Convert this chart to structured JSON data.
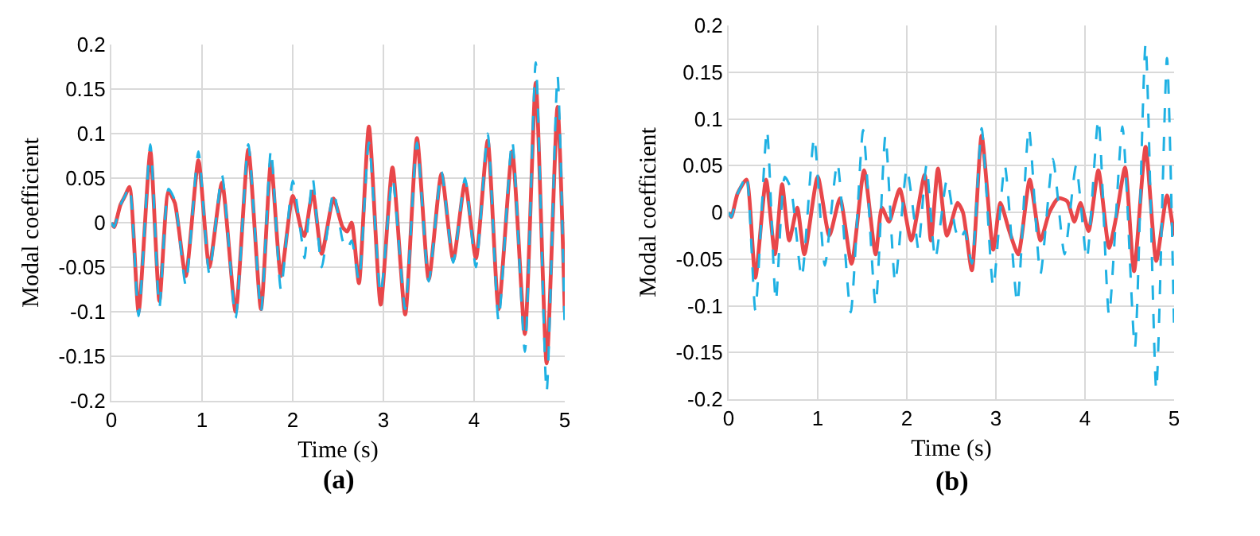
{
  "chart_data": [
    {
      "type": "line",
      "xlabel": "Time (s)",
      "ylabel": "Modal coefficient",
      "annotations": [
        "(a)"
      ],
      "xlim": [
        0,
        5
      ],
      "ylim": [
        -0.2,
        0.2
      ],
      "xticks": [
        0,
        1,
        2,
        3,
        4,
        5
      ],
      "yticks": [
        -0.2,
        -0.15,
        -0.1,
        -0.05,
        0,
        0.05,
        0.1,
        0.15,
        0.2
      ],
      "grid": true,
      "marker": "none",
      "series": [
        {
          "color": "#1fb1e3",
          "line_style": "dashed",
          "x": [
            0,
            0.03,
            0.1,
            0.15,
            0.2,
            0.3,
            0.43,
            0.53,
            0.63,
            0.7,
            0.82,
            0.96,
            1.08,
            1.22,
            1.37,
            1.51,
            1.65,
            1.76,
            1.87,
            2.0,
            2.1,
            2.13,
            2.22,
            2.32,
            2.45,
            2.55,
            2.6,
            2.65,
            2.73,
            2.84,
            2.97,
            3.1,
            3.24,
            3.37,
            3.5,
            3.64,
            3.77,
            3.9,
            4.02,
            4.15,
            4.27,
            4.42,
            4.56,
            4.68,
            4.8,
            4.92,
            5.0
          ],
          "values": [
            0,
            -0.005,
            0.02,
            0.03,
            0.04,
            -0.105,
            0.088,
            -0.095,
            0.038,
            0.025,
            -0.07,
            0.08,
            -0.057,
            0.053,
            -0.107,
            0.088,
            -0.1,
            0.082,
            -0.075,
            0.047,
            -0.02,
            -0.04,
            0.05,
            -0.05,
            0.035,
            -0.02,
            -0.03,
            -0.02,
            -0.065,
            0.09,
            -0.08,
            0.05,
            -0.097,
            0.09,
            -0.066,
            0.057,
            -0.045,
            0.05,
            -0.05,
            0.1,
            -0.11,
            0.092,
            -0.145,
            0.18,
            -0.19,
            0.165,
            -0.125
          ]
        },
        {
          "color": "#e8474a",
          "line_style": "solid",
          "x": [
            0,
            0.03,
            0.1,
            0.15,
            0.2,
            0.3,
            0.43,
            0.53,
            0.63,
            0.7,
            0.82,
            0.96,
            1.08,
            1.22,
            1.37,
            1.51,
            1.65,
            1.76,
            1.87,
            2.0,
            2.1,
            2.13,
            2.22,
            2.32,
            2.45,
            2.55,
            2.6,
            2.65,
            2.73,
            2.84,
            2.97,
            3.1,
            3.24,
            3.37,
            3.5,
            3.64,
            3.77,
            3.9,
            4.02,
            4.15,
            4.27,
            4.42,
            4.56,
            4.68,
            4.8,
            4.92,
            5.0
          ],
          "values": [
            0,
            -0.005,
            0.02,
            0.03,
            0.04,
            -0.1,
            0.08,
            -0.088,
            0.035,
            0.022,
            -0.06,
            0.07,
            -0.05,
            0.045,
            -0.1,
            0.082,
            -0.097,
            0.068,
            -0.06,
            0.03,
            -0.01,
            -0.015,
            0.035,
            -0.035,
            0.027,
            -0.005,
            -0.01,
            0,
            -0.068,
            0.108,
            -0.092,
            0.062,
            -0.103,
            0.095,
            -0.064,
            0.055,
            -0.042,
            0.045,
            -0.04,
            0.092,
            -0.097,
            0.08,
            -0.125,
            0.157,
            -0.158,
            0.13,
            -0.1
          ]
        }
      ]
    },
    {
      "type": "line",
      "xlabel": "Time (s)",
      "ylabel": "Modal coefficient",
      "annotations": [
        "(b)"
      ],
      "xlim": [
        0,
        5
      ],
      "ylim": [
        -0.2,
        0.2
      ],
      "xticks": [
        0,
        1,
        2,
        3,
        4,
        5
      ],
      "yticks": [
        -0.2,
        -0.15,
        -0.1,
        -0.05,
        0,
        0.05,
        0.1,
        0.15,
        0.2
      ],
      "grid": true,
      "marker": "none",
      "series": [
        {
          "color": "#1fb1e3",
          "line_style": "dashed",
          "x": [
            0,
            0.03,
            0.1,
            0.15,
            0.2,
            0.3,
            0.43,
            0.53,
            0.63,
            0.7,
            0.82,
            0.96,
            1.08,
            1.22,
            1.37,
            1.51,
            1.65,
            1.76,
            1.87,
            2.0,
            2.1,
            2.13,
            2.22,
            2.32,
            2.45,
            2.55,
            2.6,
            2.65,
            2.73,
            2.84,
            2.97,
            3.1,
            3.24,
            3.37,
            3.5,
            3.64,
            3.77,
            3.9,
            4.02,
            4.15,
            4.27,
            4.42,
            4.56,
            4.68,
            4.8,
            4.92,
            5.0
          ],
          "values": [
            0,
            -0.005,
            0.02,
            0.03,
            0.04,
            -0.105,
            0.088,
            -0.095,
            0.038,
            0.025,
            -0.07,
            0.08,
            -0.057,
            0.053,
            -0.107,
            0.088,
            -0.1,
            0.082,
            -0.075,
            0.047,
            -0.02,
            -0.04,
            0.05,
            -0.05,
            0.035,
            -0.02,
            -0.03,
            -0.02,
            -0.055,
            0.09,
            -0.08,
            0.05,
            -0.097,
            0.09,
            -0.066,
            0.057,
            -0.045,
            0.05,
            -0.05,
            0.1,
            -0.11,
            0.092,
            -0.145,
            0.18,
            -0.19,
            0.165,
            -0.125
          ]
        },
        {
          "color": "#e8474a",
          "line_style": "solid",
          "x": [
            0,
            0.03,
            0.1,
            0.2,
            0.3,
            0.42,
            0.52,
            0.6,
            0.68,
            0.77,
            0.85,
            1.0,
            1.13,
            1.25,
            1.38,
            1.52,
            1.65,
            1.72,
            1.8,
            1.92,
            2.05,
            2.2,
            2.27,
            2.35,
            2.45,
            2.57,
            2.63,
            2.73,
            2.84,
            2.97,
            3.05,
            3.15,
            3.25,
            3.38,
            3.5,
            3.6,
            3.7,
            3.8,
            3.88,
            3.95,
            4.04,
            4.15,
            4.27,
            4.35,
            4.45,
            4.55,
            4.68,
            4.8,
            4.92,
            5.0
          ],
          "values": [
            0,
            -0.005,
            0.02,
            0.035,
            -0.07,
            0.035,
            -0.045,
            0.03,
            -0.03,
            0.005,
            -0.045,
            0.038,
            -0.025,
            0.015,
            -0.055,
            0.045,
            -0.045,
            0.005,
            -0.01,
            0.025,
            -0.03,
            0.04,
            -0.03,
            0.047,
            -0.025,
            0.01,
            0,
            -0.062,
            0.082,
            -0.04,
            0.01,
            -0.02,
            -0.045,
            0.035,
            -0.03,
            0,
            0.015,
            0.012,
            -0.01,
            0.01,
            -0.02,
            0.045,
            -0.038,
            -0.005,
            0.048,
            -0.063,
            0.07,
            -0.052,
            0.018,
            -0.025
          ]
        }
      ]
    }
  ]
}
